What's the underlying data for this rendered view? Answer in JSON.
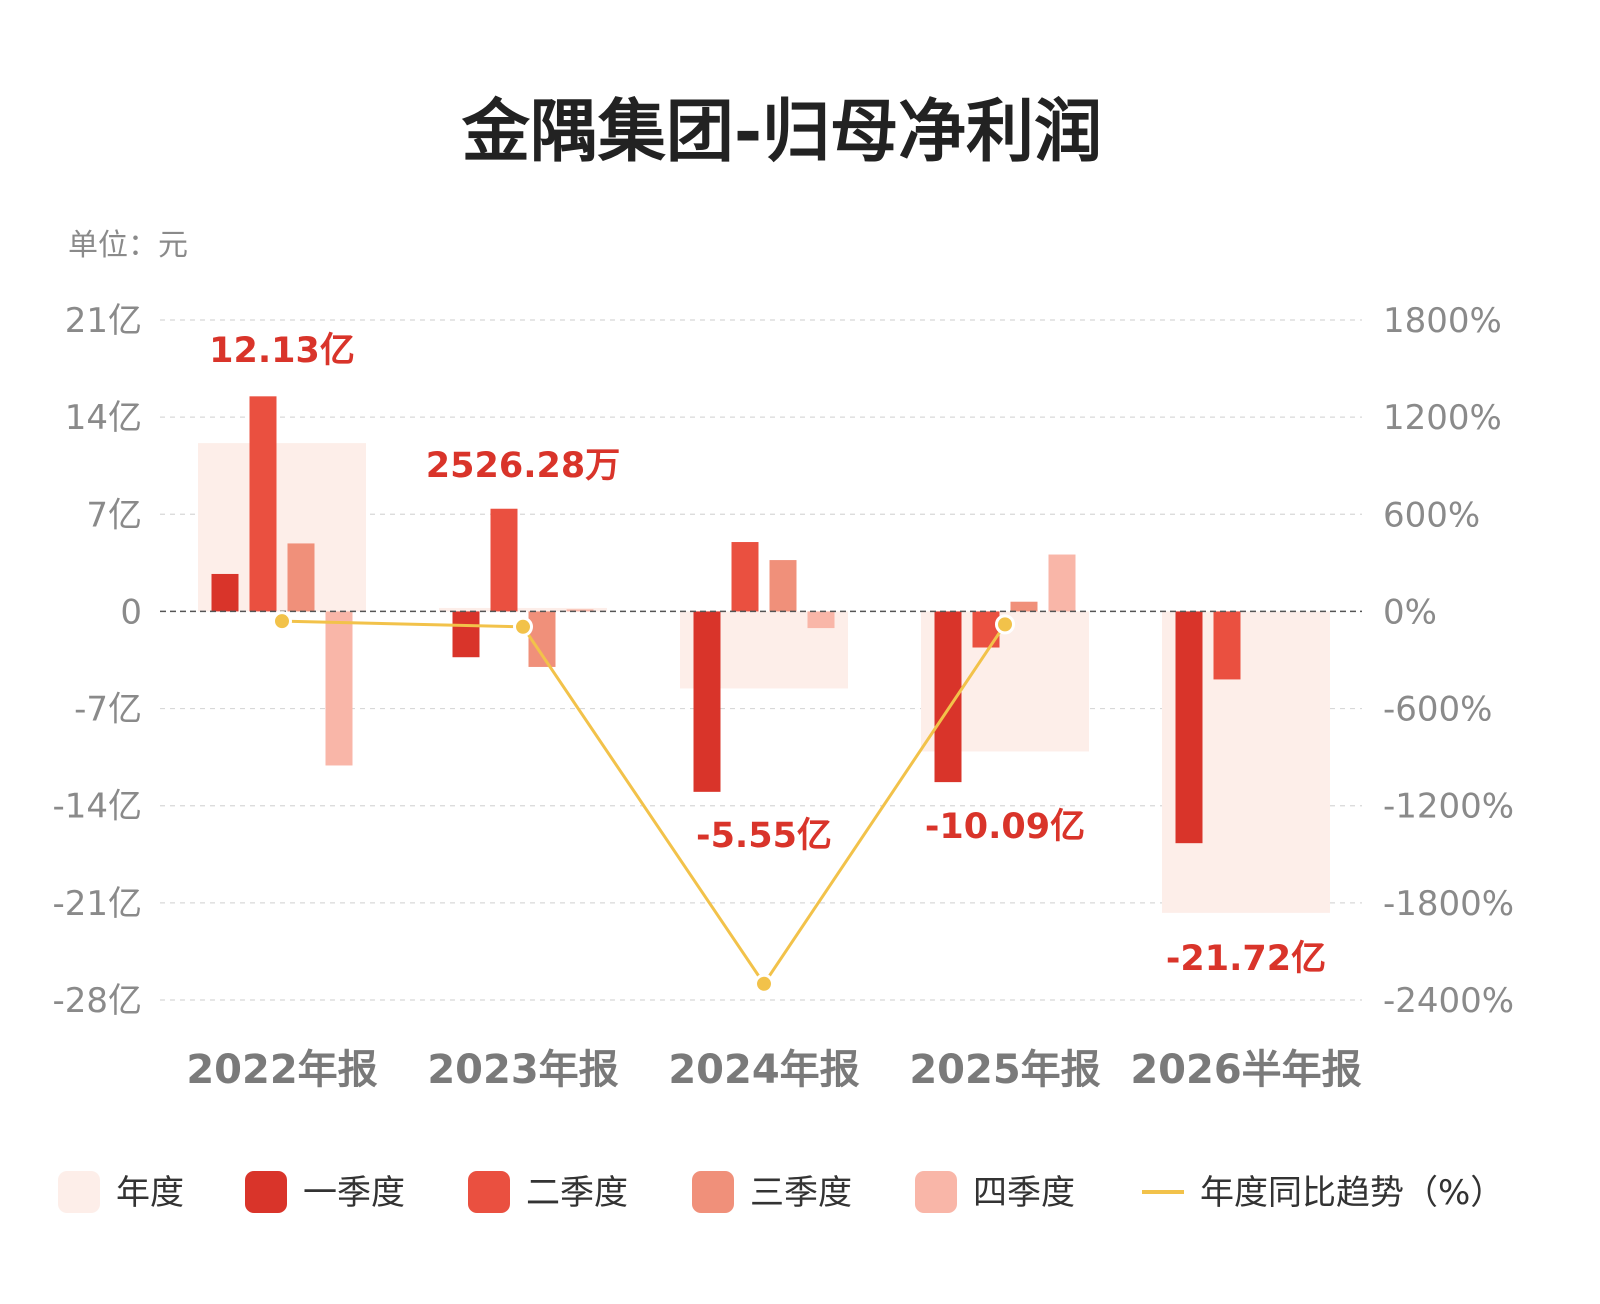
{
  "chart_data": {
    "type": "bar",
    "title": "金隅集团-归母净利润",
    "unit_label": "单位：元",
    "categories": [
      "2022年报",
      "2023年报",
      "2024年报",
      "2025年报",
      "2026半年报"
    ],
    "annual_labels": [
      "12.13亿",
      "2526.28万",
      "-5.55亿",
      "-10.09亿",
      "-21.72亿"
    ],
    "y_left": {
      "ticks": [
        21,
        14,
        7,
        0,
        -7,
        -14,
        -21,
        -28
      ],
      "tick_labels": [
        "21亿",
        "14亿",
        "7亿",
        "0",
        "-7亿",
        "-14亿",
        "-21亿",
        "-28亿"
      ],
      "ylim": [
        -28,
        21
      ],
      "unit": "亿"
    },
    "y_right": {
      "ticks": [
        1800,
        1200,
        600,
        0,
        -600,
        -1200,
        -1800,
        -2400
      ],
      "tick_labels": [
        "1800%",
        "1200%",
        "600%",
        "0%",
        "-600%",
        "-1200%",
        "-1800%",
        "-2400%"
      ],
      "ylim": [
        -2400,
        1800
      ]
    },
    "grid": true,
    "legend_position": "bottom",
    "series": [
      {
        "name": "年度",
        "kind": "annual-box",
        "color": "#fdeee9",
        "values": [
          12.13,
          0.25,
          -5.55,
          -10.09,
          -21.72
        ]
      },
      {
        "name": "一季度",
        "kind": "bar",
        "color": "#d9342a",
        "values": [
          2.7,
          -3.3,
          -13.0,
          -12.3,
          -16.7
        ]
      },
      {
        "name": "二季度",
        "kind": "bar",
        "color": "#ea5040",
        "values": [
          15.5,
          7.4,
          5.0,
          -2.6,
          -4.9
        ]
      },
      {
        "name": "三季度",
        "kind": "bar",
        "color": "#f0907a",
        "values": [
          4.9,
          -4.0,
          3.7,
          0.7,
          null
        ]
      },
      {
        "name": "四季度",
        "kind": "bar",
        "color": "#f9b6a8",
        "values": [
          -11.1,
          0.15,
          -1.2,
          4.1,
          null
        ]
      },
      {
        "name": "年度同比趋势（%）",
        "kind": "line",
        "color": "#f2c24a",
        "values": [
          -60,
          -95,
          -2300,
          -80,
          null
        ]
      }
    ]
  }
}
